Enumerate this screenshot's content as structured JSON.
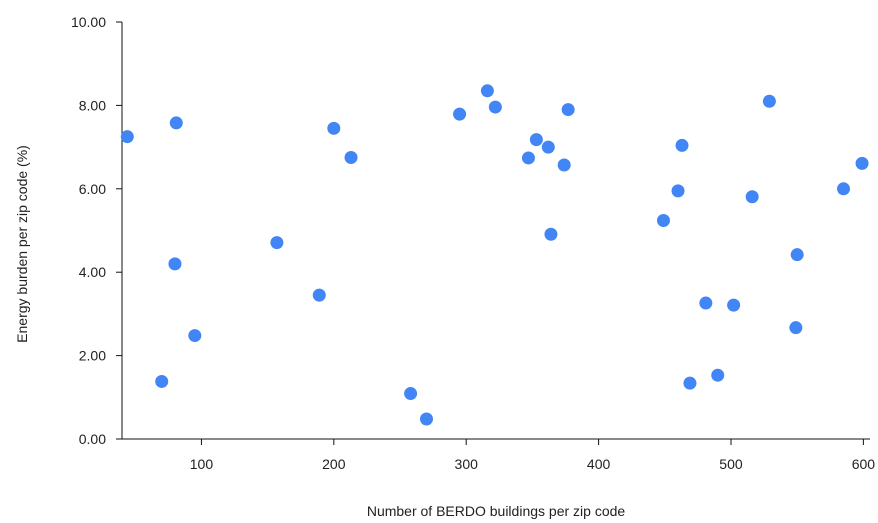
{
  "chart_data": {
    "type": "scatter",
    "title": "",
    "xlabel": "Number of BERDO buildings per zip code",
    "ylabel": "Energy burden per zip code (%)",
    "xlim": [
      40,
      605
    ],
    "ylim": [
      0,
      10
    ],
    "x_ticks": [
      100,
      200,
      300,
      400,
      500,
      600
    ],
    "y_ticks": [
      0,
      2,
      4,
      6,
      8,
      10
    ],
    "x_tick_labels": [
      "100",
      "200",
      "300",
      "400",
      "500",
      "600"
    ],
    "y_tick_labels": [
      "0.00",
      "2.00",
      "4.00",
      "6.00",
      "8.00",
      "10.00"
    ],
    "grid": false,
    "legend": "none",
    "point_color": "#4285f4",
    "points": [
      {
        "x": 44,
        "y": 7.25
      },
      {
        "x": 70,
        "y": 1.38
      },
      {
        "x": 80,
        "y": 4.2
      },
      {
        "x": 81,
        "y": 7.58
      },
      {
        "x": 95,
        "y": 2.48
      },
      {
        "x": 157,
        "y": 4.71
      },
      {
        "x": 189,
        "y": 3.45
      },
      {
        "x": 200,
        "y": 7.45
      },
      {
        "x": 213,
        "y": 6.75
      },
      {
        "x": 258,
        "y": 1.09
      },
      {
        "x": 270,
        "y": 0.48
      },
      {
        "x": 295,
        "y": 7.79
      },
      {
        "x": 316,
        "y": 8.35
      },
      {
        "x": 322,
        "y": 7.96
      },
      {
        "x": 347,
        "y": 6.74
      },
      {
        "x": 353,
        "y": 7.18
      },
      {
        "x": 362,
        "y": 7.0
      },
      {
        "x": 364,
        "y": 4.91
      },
      {
        "x": 374,
        "y": 6.57
      },
      {
        "x": 377,
        "y": 7.9
      },
      {
        "x": 449,
        "y": 5.24
      },
      {
        "x": 460,
        "y": 5.95
      },
      {
        "x": 463,
        "y": 7.04
      },
      {
        "x": 469,
        "y": 1.34
      },
      {
        "x": 481,
        "y": 3.26
      },
      {
        "x": 490,
        "y": 1.53
      },
      {
        "x": 502,
        "y": 3.21
      },
      {
        "x": 516,
        "y": 5.81
      },
      {
        "x": 529,
        "y": 8.1
      },
      {
        "x": 549,
        "y": 2.67
      },
      {
        "x": 550,
        "y": 4.42
      },
      {
        "x": 585,
        "y": 6.0
      },
      {
        "x": 599,
        "y": 6.61
      }
    ]
  }
}
